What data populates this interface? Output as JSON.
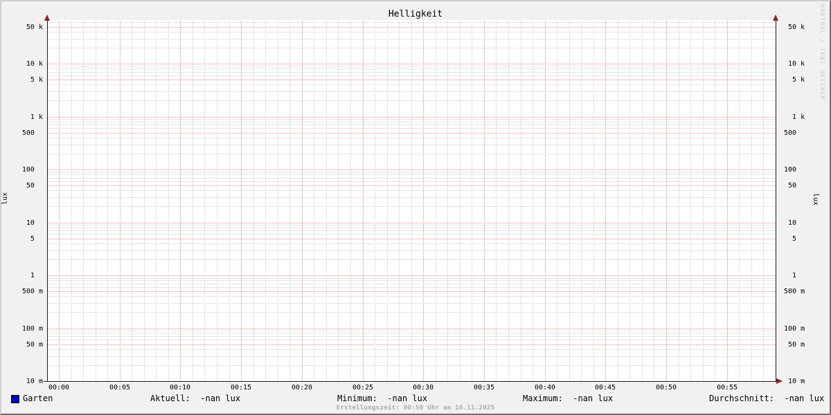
{
  "title": "Helligkeit",
  "watermark": "RRDTOOL / TOBI OETIKER",
  "footer": {
    "text": "Erstellungszeit: 00:50 Uhr am 16.11.2025"
  },
  "legend": {
    "swatch_color": "#0000cc",
    "series_label": "Garten",
    "aktuell": "Aktuell:  -nan lux",
    "minimum": "Minimum:  -nan lux",
    "maximum": "Maximum:  -nan lux",
    "durchschnitt": "Durchschnitt:  -nan lux"
  },
  "colors": {
    "background": "#f1f1f1",
    "canvas": "#ffffff",
    "grid_major": "#ee8888",
    "grid_minor": "#cccccc",
    "axis": "#1c1c1c",
    "arrow": "#8b2222",
    "series_garten": "#0000cc",
    "footer_text": "#a9a9a9",
    "watermark_text": "#c9c9c9"
  },
  "chart_data": {
    "type": "line",
    "title": "Helligkeit",
    "ylabel_left": "lux",
    "ylabel_right": "lux",
    "y_scale": "log",
    "ylim": [
      0.01,
      50000
    ],
    "x_range_minutes": [
      0,
      59
    ],
    "x_minor_step_minutes": 1,
    "x_major_step_minutes": 5,
    "grid": {
      "major_color": "#ee8888",
      "minor_color": "#cccccc",
      "grid_on": true
    },
    "legend_position": "bottom",
    "y_major_ticks": [
      {
        "value": 50000,
        "label": " 50 k"
      },
      {
        "value": 10000,
        "label": " 10 k"
      },
      {
        "value": 5000,
        "label": "  5 k"
      },
      {
        "value": 1000,
        "label": "  1 k"
      },
      {
        "value": 500,
        "label": "500  "
      },
      {
        "value": 100,
        "label": "100  "
      },
      {
        "value": 50,
        "label": " 50  "
      },
      {
        "value": 10,
        "label": " 10  "
      },
      {
        "value": 5,
        "label": "  5  "
      },
      {
        "value": 1,
        "label": "  1  "
      },
      {
        "value": 0.5,
        "label": "500 m"
      },
      {
        "value": 0.1,
        "label": "100 m"
      },
      {
        "value": 0.05,
        "label": " 50 m"
      },
      {
        "value": 0.01,
        "label": " 10 m"
      }
    ],
    "y_minor_multipliers": [
      2,
      3,
      4,
      6,
      7,
      8,
      9
    ],
    "x_ticks": [
      {
        "minute": 0,
        "label": "00:00"
      },
      {
        "minute": 5,
        "label": "00:05"
      },
      {
        "minute": 10,
        "label": "00:10"
      },
      {
        "minute": 15,
        "label": "00:15"
      },
      {
        "minute": 20,
        "label": "00:20"
      },
      {
        "minute": 25,
        "label": "00:25"
      },
      {
        "minute": 30,
        "label": "00:30"
      },
      {
        "minute": 35,
        "label": "00:35"
      },
      {
        "minute": 40,
        "label": "00:40"
      },
      {
        "minute": 45,
        "label": "00:45"
      },
      {
        "minute": 50,
        "label": "00:50"
      },
      {
        "minute": 55,
        "label": "00:55"
      }
    ],
    "series": [
      {
        "name": "Garten",
        "color": "#0000cc",
        "values": [],
        "aktuell": "-nan lux",
        "minimum": "-nan lux",
        "maximum": "-nan lux",
        "durchschnitt": "-nan lux"
      }
    ]
  }
}
